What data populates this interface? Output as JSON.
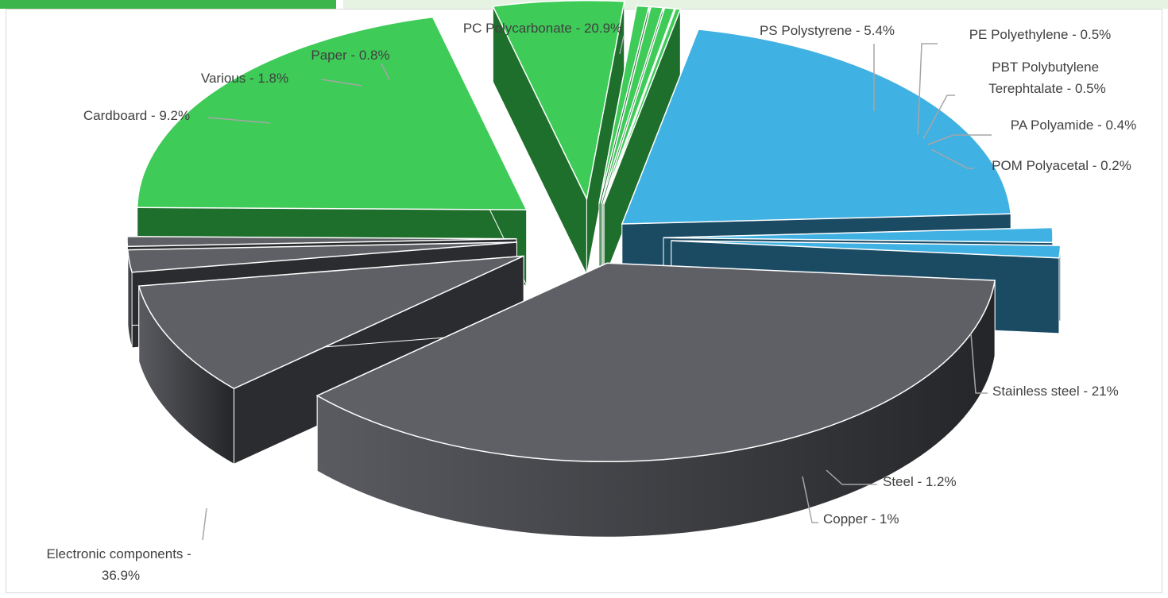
{
  "chart_data": {
    "type": "pie",
    "variant": "3d-exploded",
    "title": "",
    "slices": [
      {
        "label": "Electronic components - 36.9%",
        "category": "Electronic components",
        "value": 36.9,
        "color": "#5f6066"
      },
      {
        "label": "Cardboard - 9.2%",
        "category": "Cardboard",
        "value": 9.2,
        "color": "#5f6066"
      },
      {
        "label": "Various - 1.8%",
        "category": "Various",
        "value": 1.8,
        "color": "#5f6066"
      },
      {
        "label": "Paper - 0.8%",
        "category": "Paper",
        "value": 0.8,
        "color": "#5f6066"
      },
      {
        "label": "PC Polycarbonate - 20.9%",
        "category": "PC Polycarbonate",
        "value": 20.9,
        "color": "#3ecb58"
      },
      {
        "label": "PS Polystyrene - 5.4%",
        "category": "PS Polystyrene",
        "value": 5.4,
        "color": "#3ecb58"
      },
      {
        "label": "PE Polyethylene - 0.5%",
        "category": "PE Polyethylene",
        "value": 0.5,
        "color": "#3ecb58"
      },
      {
        "label": "PBT Polybutylene Terephtalate - 0.5%",
        "category": "PBT Polybutylene Terephtalate",
        "value": 0.5,
        "color": "#3ecb58"
      },
      {
        "label": "PA Polyamide - 0.4%",
        "category": "PA Polyamide",
        "value": 0.4,
        "color": "#3ecb58"
      },
      {
        "label": "POM Polyacetal - 0.2%",
        "category": "POM Polyacetal",
        "value": 0.2,
        "color": "#3ecb58"
      },
      {
        "label": "Stainless steel - 21%",
        "category": "Stainless steel",
        "value": 21,
        "color": "#40b1e3"
      },
      {
        "label": "Steel - 1.2%",
        "category": "Steel",
        "value": 1.2,
        "color": "#40b1e3"
      },
      {
        "label": "Copper - 1%",
        "category": "Copper",
        "value": 1,
        "color": "#40b1e3"
      }
    ],
    "legend": "none"
  }
}
